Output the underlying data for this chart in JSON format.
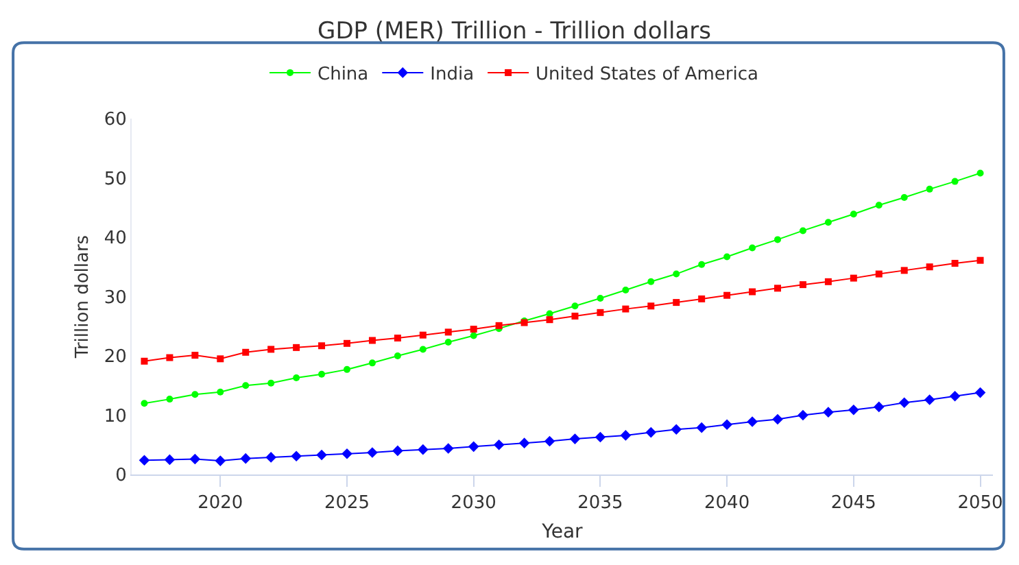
{
  "chart_data": {
    "type": "line",
    "title": "GDP (MER) Trillion - Trillion dollars",
    "xlabel": "Year",
    "ylabel": "Trillion dollars",
    "x": [
      2017,
      2018,
      2019,
      2020,
      2021,
      2022,
      2023,
      2024,
      2025,
      2026,
      2027,
      2028,
      2029,
      2030,
      2031,
      2032,
      2033,
      2034,
      2035,
      2036,
      2037,
      2038,
      2039,
      2040,
      2041,
      2042,
      2043,
      2044,
      2045,
      2046,
      2047,
      2048,
      2049,
      2050
    ],
    "series": [
      {
        "name": "China",
        "color": "#00ff00",
        "marker": "circle",
        "values": [
          12.0,
          12.7,
          13.5,
          13.9,
          15.0,
          15.4,
          16.3,
          16.9,
          17.7,
          18.8,
          20.0,
          21.1,
          22.3,
          23.4,
          24.6,
          25.9,
          27.1,
          28.4,
          29.7,
          31.1,
          32.5,
          33.8,
          35.4,
          36.7,
          38.2,
          39.6,
          41.1,
          42.5,
          43.9,
          45.4,
          46.7,
          48.1,
          49.4,
          50.8
        ]
      },
      {
        "name": "India",
        "color": "#0000ff",
        "marker": "diamond",
        "values": [
          2.4,
          2.5,
          2.6,
          2.3,
          2.7,
          2.9,
          3.1,
          3.3,
          3.5,
          3.7,
          4.0,
          4.2,
          4.4,
          4.7,
          5.0,
          5.3,
          5.6,
          6.0,
          6.3,
          6.6,
          7.1,
          7.6,
          7.9,
          8.4,
          8.9,
          9.3,
          10.0,
          10.5,
          10.9,
          11.4,
          12.1,
          12.6,
          13.2,
          13.8
        ]
      },
      {
        "name": "United States of America",
        "color": "#ff0000",
        "marker": "square",
        "values": [
          19.1,
          19.7,
          20.1,
          19.5,
          20.6,
          21.1,
          21.4,
          21.7,
          22.1,
          22.6,
          23.0,
          23.5,
          24.0,
          24.5,
          25.1,
          25.6,
          26.1,
          26.7,
          27.3,
          27.9,
          28.4,
          29.0,
          29.6,
          30.2,
          30.8,
          31.4,
          32.0,
          32.5,
          33.1,
          33.8,
          34.4,
          35.0,
          35.6,
          36.1
        ]
      }
    ],
    "xlim": [
      2016.5,
      2050.5
    ],
    "xticks": [
      2020,
      2025,
      2030,
      2035,
      2040,
      2045,
      2050
    ],
    "ylim": [
      0,
      60
    ],
    "yticks": [
      0,
      10,
      20,
      30,
      40,
      50,
      60
    ],
    "grid": false,
    "legend": "top",
    "line_style": "solid"
  }
}
